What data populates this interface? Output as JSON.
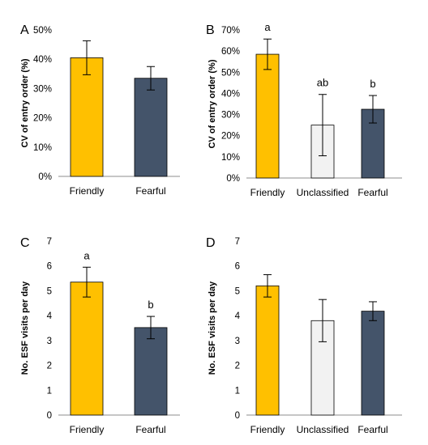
{
  "chart_data": [
    {
      "type": "bar",
      "panel_label": "A",
      "ylabel": "CV of entry order (%)",
      "ylim": [
        0,
        50
      ],
      "yticks": [
        0,
        10,
        20,
        30,
        40,
        50
      ],
      "ytick_labels": [
        "0%",
        "10%",
        "20%",
        "30%",
        "40%",
        "50%"
      ],
      "categories": [
        "Friendly",
        "Fearful"
      ],
      "values": [
        40.5,
        33.5
      ],
      "error": [
        5.8,
        4.0
      ],
      "colors": [
        "#FFC000",
        "#44546A"
      ],
      "sig_labels": [
        "",
        ""
      ]
    },
    {
      "type": "bar",
      "panel_label": "B",
      "ylabel": "CV of entry order (%)",
      "ylim": [
        0,
        70
      ],
      "yticks": [
        0,
        10,
        20,
        30,
        40,
        50,
        60,
        70
      ],
      "ytick_labels": [
        "0%",
        "10%",
        "20%",
        "30%",
        "40%",
        "50%",
        "60%",
        "70%"
      ],
      "categories": [
        "Friendly",
        "Unclassified",
        "Fearful"
      ],
      "values": [
        58.5,
        25.0,
        32.5
      ],
      "error": [
        7.2,
        14.5,
        6.5
      ],
      "colors": [
        "#FFC000",
        "#F2F2F2",
        "#44546A"
      ],
      "sig_labels": [
        "a",
        "ab",
        "b"
      ]
    },
    {
      "type": "bar",
      "panel_label": "C",
      "ylabel": "No. ESF visits per day",
      "ylim": [
        0,
        7
      ],
      "yticks": [
        0,
        1,
        2,
        3,
        4,
        5,
        6,
        7
      ],
      "ytick_labels": [
        "0",
        "1",
        "2",
        "3",
        "4",
        "5",
        "6",
        "7"
      ],
      "categories": [
        "Friendly",
        "Fearful"
      ],
      "values": [
        5.35,
        3.52
      ],
      "error": [
        0.6,
        0.45
      ],
      "colors": [
        "#FFC000",
        "#44546A"
      ],
      "sig_labels": [
        "a",
        "b"
      ]
    },
    {
      "type": "bar",
      "panel_label": "D",
      "ylabel": "No. ESF visits per day",
      "ylim": [
        0,
        7
      ],
      "yticks": [
        0,
        1,
        2,
        3,
        4,
        5,
        6,
        7
      ],
      "ytick_labels": [
        "0",
        "1",
        "2",
        "3",
        "4",
        "5",
        "6",
        "7"
      ],
      "categories": [
        "Friendly",
        "Unclassified",
        "Fearful"
      ],
      "values": [
        5.2,
        3.8,
        4.18
      ],
      "error": [
        0.45,
        0.85,
        0.38
      ],
      "colors": [
        "#FFC000",
        "#F2F2F2",
        "#44546A"
      ],
      "sig_labels": [
        "",
        "",
        ""
      ]
    }
  ]
}
